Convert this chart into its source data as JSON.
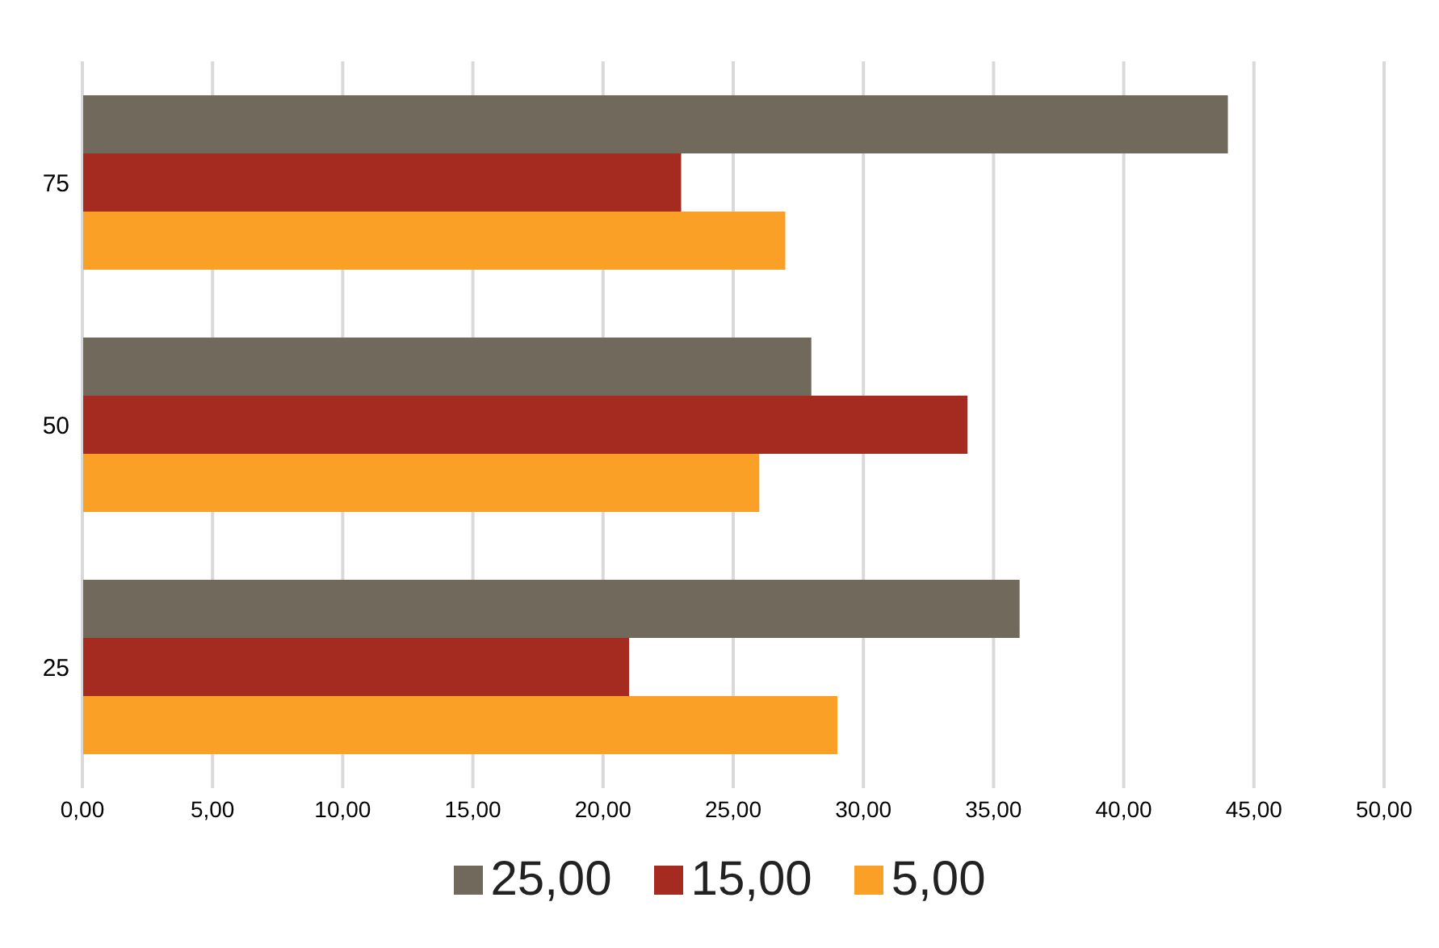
{
  "chart_data": {
    "type": "bar",
    "orientation": "horizontal",
    "categories": [
      "75",
      "50",
      "25"
    ],
    "series": [
      {
        "name": "25,00",
        "color": "#70695c",
        "values": [
          44,
          28,
          36
        ]
      },
      {
        "name": "15,00",
        "color": "#a52a1f",
        "values": [
          23,
          34,
          21
        ]
      },
      {
        "name": "5,00",
        "color": "#fba026",
        "values": [
          27,
          26,
          29
        ]
      }
    ],
    "xlim": [
      0,
      50
    ],
    "xticks": [
      {
        "value": 0,
        "label": "0,00"
      },
      {
        "value": 5,
        "label": "5,00"
      },
      {
        "value": 10,
        "label": "10,00"
      },
      {
        "value": 15,
        "label": "15,00"
      },
      {
        "value": 20,
        "label": "20,00"
      },
      {
        "value": 25,
        "label": "25,00"
      },
      {
        "value": 30,
        "label": "30,00"
      },
      {
        "value": 35,
        "label": "35,00"
      },
      {
        "value": 40,
        "label": "40,00"
      },
      {
        "value": 45,
        "label": "45,00"
      },
      {
        "value": 50,
        "label": "50,00"
      }
    ],
    "grid": "x",
    "legend": "bottom"
  }
}
